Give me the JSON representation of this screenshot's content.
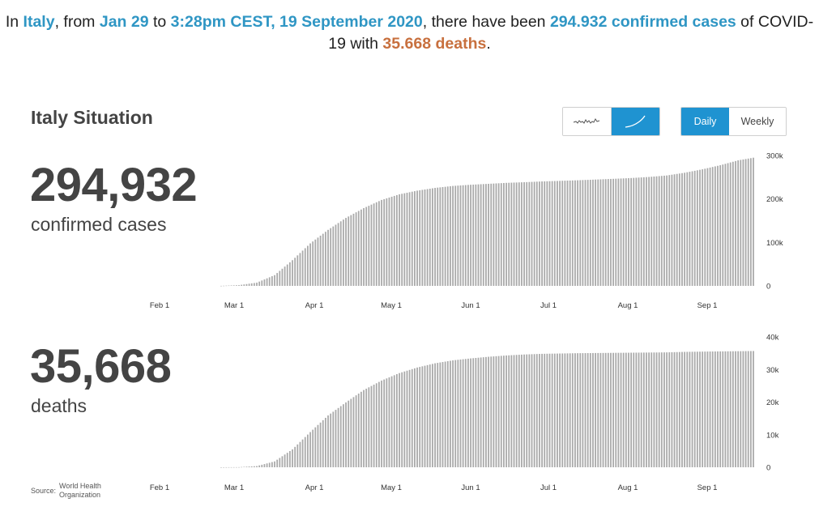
{
  "headline": {
    "part1": "In ",
    "country": "Italy",
    "part2": ", from ",
    "start_date": "Jan 29",
    "part3": " to ",
    "end_time": "3:28pm CEST, 19 September 2020",
    "part4": ", there have been ",
    "confirmed": "294.932 confirmed cases",
    "part5": " of COVID-19 with ",
    "deaths": "35.668 deaths",
    "part6": "."
  },
  "section_title": "Italy Situation",
  "toggles": {
    "chart_type": {
      "selected": "cumulative"
    },
    "period": {
      "daily_label": "Daily",
      "weekly_label": "Weekly",
      "selected": "Daily"
    }
  },
  "confirmed": {
    "value": "294,932",
    "label": "confirmed cases"
  },
  "deaths": {
    "value": "35,668",
    "label": "deaths"
  },
  "source": {
    "label": "Source:",
    "org": "World Health Organization"
  },
  "colors": {
    "accent": "#1f93d1",
    "bar": "#aaaaaa",
    "headline_blue": "#2f96c4",
    "headline_orange": "#c8703e"
  },
  "chart_data": [
    {
      "type": "bar",
      "series": [
        {
          "name": "confirmed cases"
        }
      ],
      "x_ticks": [
        "Feb 1",
        "Mar 1",
        "Apr 1",
        "May 1",
        "Jun 1",
        "Jul 1",
        "Aug 1",
        "Sep 1"
      ],
      "y_ticks": [
        "0",
        "100k",
        "200k",
        "300k"
      ],
      "ylim": [
        0,
        300000
      ],
      "x": [
        "Feb 23",
        "Mar 1",
        "Mar 8",
        "Mar 15",
        "Mar 22",
        "Mar 29",
        "Apr 5",
        "Apr 12",
        "Apr 19",
        "Apr 26",
        "May 3",
        "May 10",
        "May 17",
        "May 24",
        "May 31",
        "Jun 7",
        "Jun 14",
        "Jun 21",
        "Jun 28",
        "Jul 5",
        "Jul 12",
        "Jul 19",
        "Jul 26",
        "Aug 2",
        "Aug 9",
        "Aug 16",
        "Aug 23",
        "Aug 30",
        "Sep 6",
        "Sep 13",
        "Sep 19"
      ],
      "values": [
        150,
        1700,
        7400,
        24700,
        59100,
        97700,
        128900,
        156400,
        178900,
        197700,
        210700,
        219100,
        225400,
        229900,
        232700,
        234800,
        237000,
        238500,
        240300,
        241600,
        243000,
        244600,
        246300,
        248100,
        250600,
        254000,
        260300,
        268200,
        277600,
        288800,
        294932
      ]
    },
    {
      "type": "bar",
      "series": [
        {
          "name": "deaths"
        }
      ],
      "x_ticks": [
        "Feb 1",
        "Mar 1",
        "Apr 1",
        "May 1",
        "Jun 1",
        "Jul 1",
        "Aug 1",
        "Sep 1"
      ],
      "y_ticks": [
        "0",
        "10k",
        "20k",
        "30k",
        "40k"
      ],
      "ylim": [
        0,
        40000
      ],
      "x": [
        "Feb 23",
        "Mar 1",
        "Mar 8",
        "Mar 15",
        "Mar 22",
        "Mar 29",
        "Apr 5",
        "Apr 12",
        "Apr 19",
        "Apr 26",
        "May 3",
        "May 10",
        "May 17",
        "May 24",
        "May 31",
        "Jun 7",
        "Jun 14",
        "Jun 21",
        "Jun 28",
        "Jul 5",
        "Jul 12",
        "Jul 19",
        "Jul 26",
        "Aug 2",
        "Aug 9",
        "Aug 16",
        "Aug 23",
        "Aug 30",
        "Sep 6",
        "Sep 13",
        "Sep 19"
      ],
      "values": [
        3,
        34,
        366,
        1800,
        5500,
        10800,
        15900,
        19900,
        23700,
        26600,
        28900,
        30600,
        31900,
        32800,
        33400,
        33900,
        34300,
        34600,
        34800,
        34900,
        35000,
        35050,
        35100,
        35150,
        35200,
        35250,
        35400,
        35480,
        35550,
        35610,
        35668
      ]
    }
  ]
}
